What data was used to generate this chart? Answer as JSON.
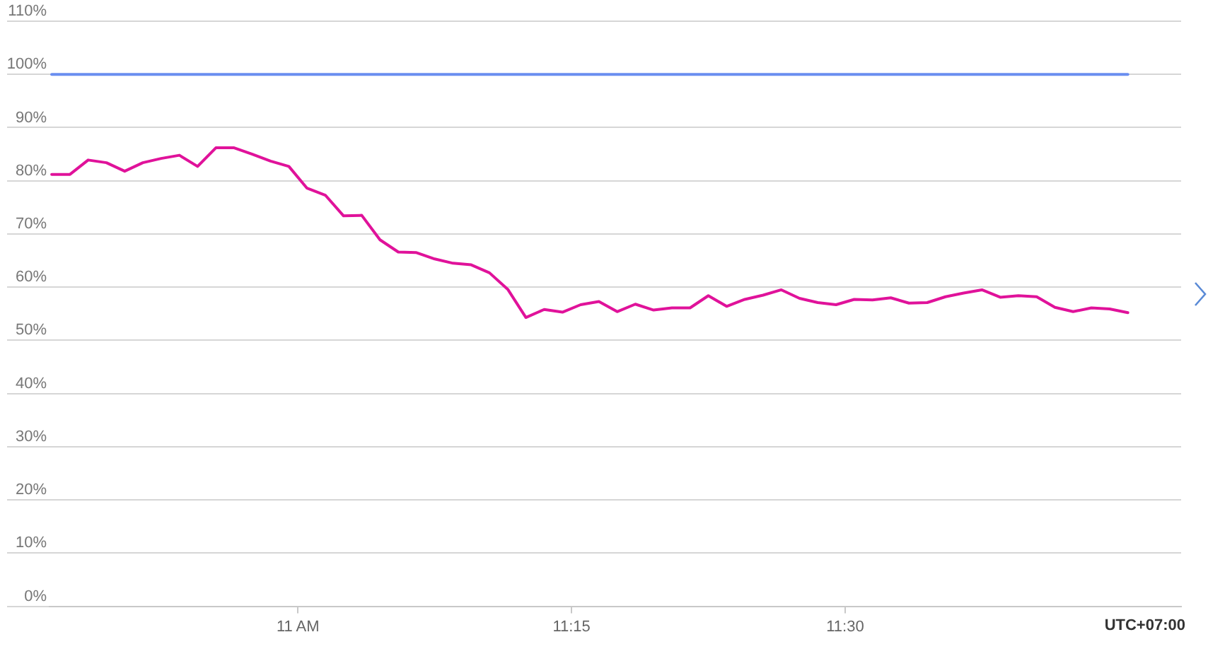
{
  "chart_data": {
    "type": "line",
    "xlabel": "UTC+07:00",
    "x": [
      10.775,
      10.7917,
      10.8083,
      10.825,
      10.8417,
      10.8583,
      10.875,
      10.8917,
      10.9083,
      10.925,
      10.9417,
      10.9583,
      10.975,
      10.9917,
      11.0083,
      11.025,
      11.0417,
      11.0583,
      11.075,
      11.0917,
      11.1083,
      11.125,
      11.1417,
      11.1583,
      11.175,
      11.1917,
      11.2083,
      11.225,
      11.2417,
      11.2583,
      11.275,
      11.2917,
      11.3083,
      11.325,
      11.3417,
      11.3583,
      11.375,
      11.3917,
      11.4083,
      11.425,
      11.4417,
      11.4583,
      11.475,
      11.4917,
      11.5083,
      11.525,
      11.5417,
      11.5583,
      11.575,
      11.5917,
      11.6083,
      11.625,
      11.6417,
      11.6583,
      11.675,
      11.6917,
      11.7083,
      11.725,
      11.7417,
      11.7583
    ],
    "series": [
      {
        "color": "#6a8ef0",
        "values": [
          100,
          100,
          100,
          100,
          100,
          100,
          100,
          100,
          100,
          100,
          100,
          100,
          100,
          100,
          100,
          100,
          100,
          100,
          100,
          100,
          100,
          100,
          100,
          100,
          100,
          100,
          100,
          100,
          100,
          100,
          100,
          100,
          100,
          100,
          100,
          100,
          100,
          100,
          100,
          100,
          100,
          100,
          100,
          100,
          100,
          100,
          100,
          100,
          100,
          100,
          100,
          100,
          100,
          100,
          100,
          100,
          100,
          100,
          100,
          100
        ]
      },
      {
        "color": "#e0129a",
        "values": [
          81.2,
          81.2,
          83.9,
          83.4,
          81.8,
          83.4,
          84.2,
          84.8,
          82.7,
          86.2,
          86.2,
          85.0,
          83.7,
          82.7,
          78.6,
          77.3,
          73.4,
          73.5,
          68.9,
          66.6,
          66.5,
          65.3,
          64.5,
          64.2,
          62.7,
          59.6,
          54.3,
          55.8,
          55.3,
          56.7,
          57.3,
          55.4,
          56.8,
          55.7,
          56.1,
          56.1,
          58.4,
          56.4,
          57.7,
          58.5,
          59.5,
          57.9,
          57.1,
          56.7,
          57.7,
          57.6,
          58.0,
          57.0,
          57.1,
          58.2,
          58.9,
          59.5,
          58.1,
          58.4,
          58.2,
          56.2,
          55.4,
          56.1,
          55.9,
          55.2
        ]
      }
    ],
    "xlim": [
      10.773,
      11.807
    ],
    "xticks": [
      {
        "value": 11,
        "label": "11 AM"
      },
      {
        "value": 11.25,
        "label": "11:15"
      },
      {
        "value": 11.5,
        "label": "11:30"
      }
    ],
    "ylim": [
      0,
      110
    ],
    "yticks": [
      {
        "value": 0,
        "label": "0%"
      },
      {
        "value": 10,
        "label": "10%"
      },
      {
        "value": 20,
        "label": "20%"
      },
      {
        "value": 30,
        "label": "30%"
      },
      {
        "value": 40,
        "label": "40%"
      },
      {
        "value": 50,
        "label": "50%"
      },
      {
        "value": 60,
        "label": "60%"
      },
      {
        "value": 70,
        "label": "70%"
      },
      {
        "value": 80,
        "label": "80%"
      },
      {
        "value": 90,
        "label": "90%"
      },
      {
        "value": 100,
        "label": "100%"
      },
      {
        "value": 110,
        "label": "110%"
      }
    ],
    "grid": "y",
    "legend": false,
    "marker": "none"
  }
}
